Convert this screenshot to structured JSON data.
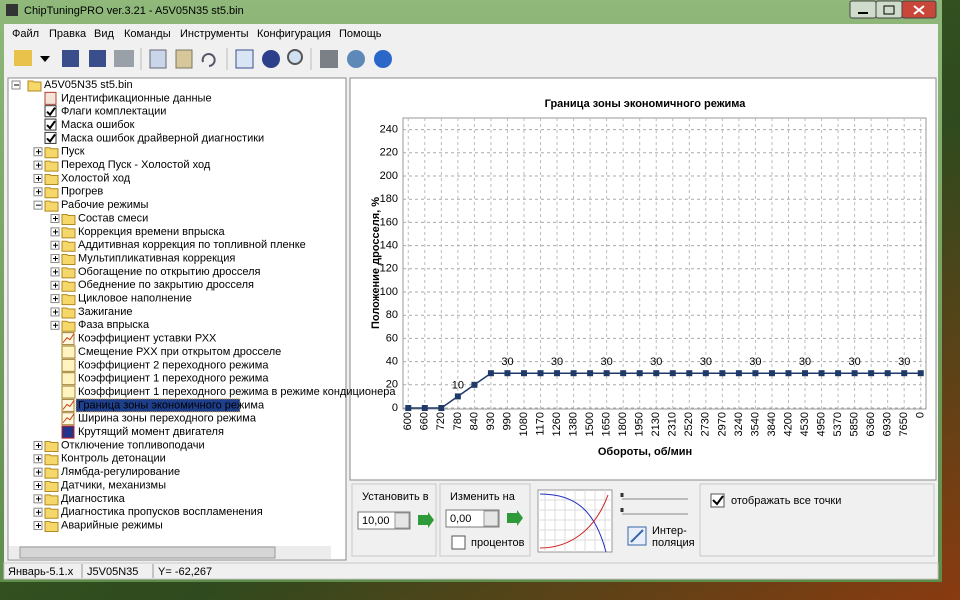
{
  "window": {
    "title": "ChipTuningPRO ver.3.21 - A5V05N35 st5.bin"
  },
  "menu": [
    "Файл",
    "Правка",
    "Вид",
    "Команды",
    "Инструменты",
    "Конфигурация",
    "Помощь"
  ],
  "tree": {
    "label": "A5V05N35 st5.bin",
    "children": [
      {
        "label": "Идентификационные данные"
      },
      {
        "label": "Флаги комплектации"
      },
      {
        "label": "Маска ошибок"
      },
      {
        "label": "Маска ошибок драйверной диагностики"
      },
      {
        "label": "Пуск"
      },
      {
        "label": "Переход Пуск - Холостой ход"
      },
      {
        "label": "Холостой ход"
      },
      {
        "label": "Прогрев"
      },
      {
        "label": "Рабочие режимы",
        "children": [
          {
            "label": "Состав смеси"
          },
          {
            "label": "Коррекция времени впрыска"
          },
          {
            "label": "Аддитивная коррекция по топливной пленке"
          },
          {
            "label": "Мультипликативная коррекция"
          },
          {
            "label": "Обогащение по открытию дросселя"
          },
          {
            "label": "Обеднение по закрытию дросселя"
          },
          {
            "label": "Цикловое наполнение"
          },
          {
            "label": "Зажигание"
          },
          {
            "label": "Фаза впрыска"
          },
          {
            "label": "Коэффициент уставки РХХ"
          },
          {
            "label": "Смещение РХХ при открытом дросселе"
          },
          {
            "label": "Коэффициент 2 переходного режима"
          },
          {
            "label": "Коэффициент 1 переходного режима"
          },
          {
            "label": "Коэффициент 1 переходного режима в режиме кондиционера"
          },
          {
            "label": "Граница зоны экономичного режима"
          },
          {
            "label": "Ширина зоны переходного режима"
          },
          {
            "label": "Крутящий момент двигателя"
          }
        ]
      },
      {
        "label": "Отключение топливоподачи"
      },
      {
        "label": "Контроль детонации"
      },
      {
        "label": "Лямбда-регулирование"
      },
      {
        "label": "Датчики, механизмы"
      },
      {
        "label": "Диагностика"
      },
      {
        "label": "Диагностика пропусков воспламенения"
      },
      {
        "label": "Аварийные режимы"
      }
    ]
  },
  "chart_data": {
    "type": "line",
    "title": "Граница зоны экономичного режима",
    "x_label": "Обороты, об/мин",
    "y_label": "Положение дросселя, %",
    "categories": [
      600,
      660,
      720,
      780,
      840,
      930,
      990,
      1080,
      1170,
      1260,
      1380,
      1500,
      1650,
      1800,
      1950,
      2130,
      2310,
      2520,
      2730,
      2970,
      3240,
      3540,
      3840,
      4200,
      4530,
      4950,
      5370,
      5850,
      6360,
      6930,
      7650,
      0
    ],
    "values": [
      0,
      0,
      0,
      10,
      20,
      30,
      30,
      30,
      30,
      30,
      30,
      30,
      30,
      30,
      30,
      30,
      30,
      30,
      30,
      30,
      30,
      30,
      30,
      30,
      30,
      30,
      30,
      30,
      30,
      30,
      30,
      30
    ],
    "value_labels": [
      null,
      null,
      null,
      "10",
      null,
      null,
      "30",
      null,
      null,
      "30",
      null,
      null,
      "30",
      null,
      null,
      "30",
      null,
      null,
      "30",
      null,
      null,
      "30",
      null,
      null,
      "30",
      null,
      null,
      "30",
      null,
      null,
      "30",
      null
    ],
    "color": "#1f3a68",
    "label_color": "#c00000",
    "ylim": [
      0,
      250
    ],
    "yticks": [
      0,
      20,
      40,
      60,
      80,
      100,
      120,
      140,
      160,
      180,
      200,
      220,
      240
    ],
    "grid": true
  },
  "controls": {
    "set_label": "Установить в",
    "set_value": "10,00",
    "change_label": "Изменить на",
    "change_value": "0,00",
    "percent_label": "процентов",
    "interpolation_label": [
      "Интер-",
      "поляция"
    ],
    "show_all_points": "отображать все точки"
  },
  "status": [
    "Январь-5.1.x",
    "J5V05N35",
    "Y= -62,267"
  ]
}
